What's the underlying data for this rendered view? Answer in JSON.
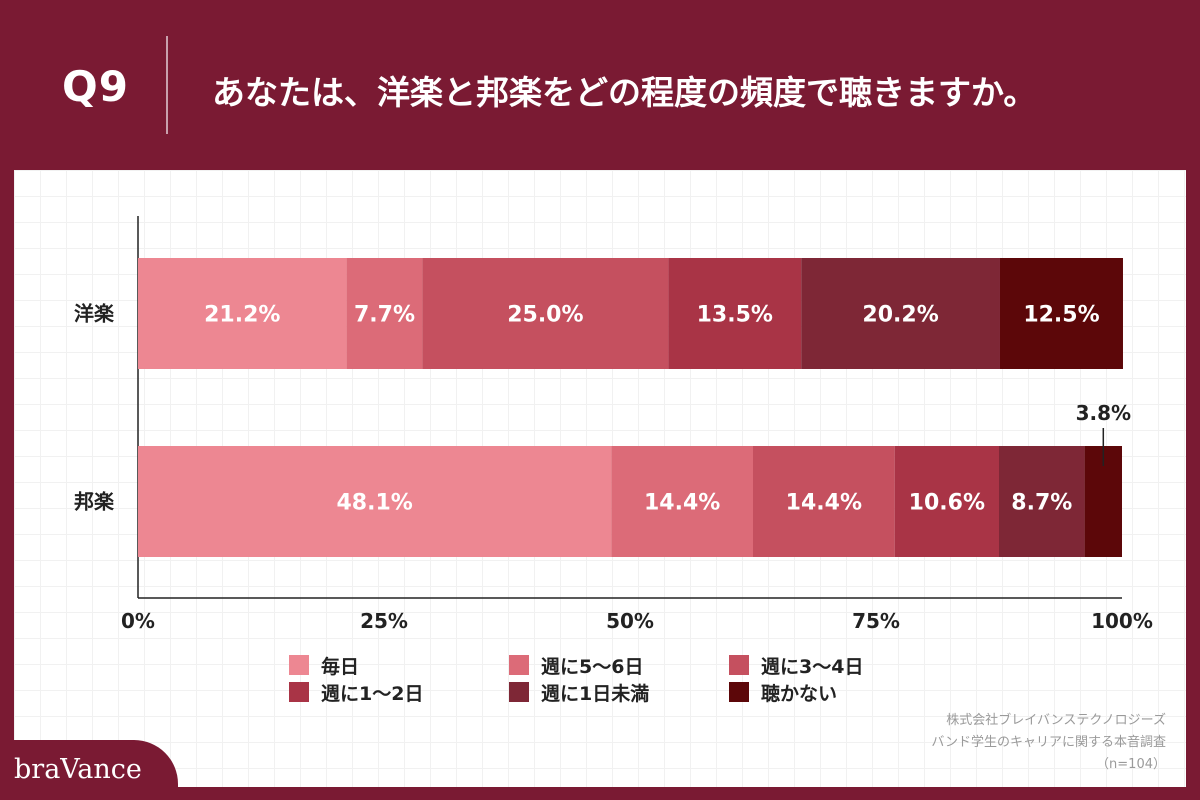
{
  "header": {
    "question_number": "Q9",
    "question_text": "あなたは、洋楽と邦楽をどの程度の頻度で聴きますか。"
  },
  "chart_data": {
    "type": "bar",
    "orientation": "horizontal",
    "stacked": true,
    "categories": [
      "洋楽",
      "邦楽"
    ],
    "series": [
      {
        "name": "毎日",
        "color": "#ed8792",
        "values": [
          21.2,
          48.1
        ]
      },
      {
        "name": "週に5〜6日",
        "color": "#dc6b78",
        "values": [
          7.7,
          14.4
        ]
      },
      {
        "name": "週に3〜4日",
        "color": "#c5505f",
        "values": [
          25.0,
          14.4
        ]
      },
      {
        "name": "週に1〜2日",
        "color": "#a93446",
        "values": [
          13.5,
          10.6
        ]
      },
      {
        "name": "週に1日未満",
        "color": "#7e2736",
        "values": [
          20.2,
          8.7
        ]
      },
      {
        "name": "聴かない",
        "color": "#5c0709",
        "values": [
          12.5,
          3.8
        ]
      }
    ],
    "value_labels": [
      [
        "21.2%",
        "7.7%",
        "25.0%",
        "13.5%",
        "20.2%",
        "12.5%"
      ],
      [
        "48.1%",
        "14.4%",
        "14.4%",
        "10.6%",
        "8.7%",
        "3.8%"
      ]
    ],
    "xlim": [
      0,
      100
    ],
    "xticks": [
      0,
      25,
      50,
      75,
      100
    ],
    "xtick_labels": [
      "0%",
      "25%",
      "50%",
      "75%",
      "100%"
    ],
    "legend": {
      "placement": "bottom",
      "columns": 3
    }
  },
  "source": {
    "line1": "株式会社ブレイバンステクノロジーズ",
    "line2": "バンド学生のキャリアに関する本音調査",
    "line3": "（n=104）"
  },
  "brand": {
    "logo_text": "braVance",
    "color": "#7a1a33"
  }
}
